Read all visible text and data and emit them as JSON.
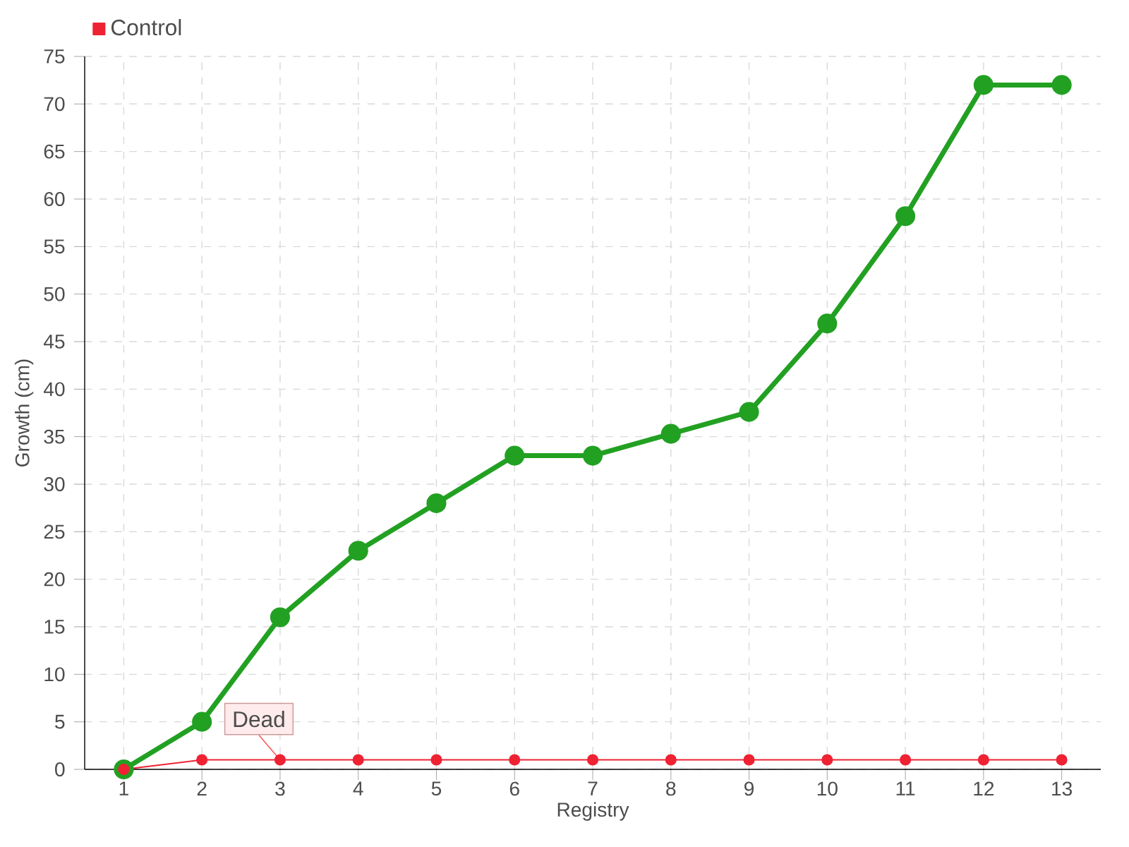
{
  "chart_data": {
    "type": "line",
    "xlabel": "Registry",
    "ylabel": "Growth (cm)",
    "categories": [
      "1",
      "2",
      "3",
      "4",
      "5",
      "6",
      "7",
      "8",
      "9",
      "10",
      "11",
      "12",
      "13"
    ],
    "series": [
      {
        "color": "#22a022",
        "values": [
          0,
          5,
          16,
          23,
          28,
          33,
          33,
          35.3,
          37.6,
          46.9,
          58.2,
          72,
          72
        ]
      },
      {
        "name": "Control",
        "color": "#ee2233",
        "values": [
          0,
          1,
          1,
          1,
          1,
          1,
          1,
          1,
          1,
          1,
          1,
          1,
          1
        ]
      }
    ],
    "annotations": [
      {
        "text": "Dead",
        "x": "3",
        "y": 1
      }
    ],
    "ylim": [
      0,
      75
    ],
    "yticks": [
      0,
      5,
      10,
      15,
      20,
      25,
      30,
      35,
      40,
      45,
      50,
      55,
      60,
      65,
      70,
      75
    ],
    "grid": true,
    "legend": "top left",
    "marker": "circle",
    "line_style": "solid"
  }
}
